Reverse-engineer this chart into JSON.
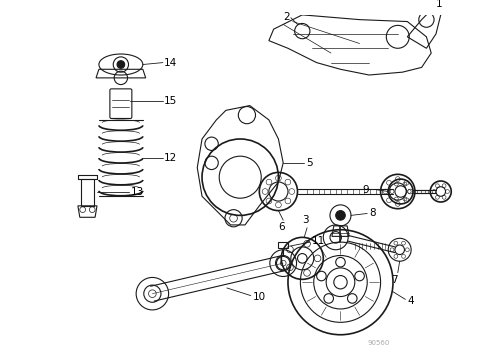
{
  "background_color": "#ffffff",
  "line_color": "#1a1a1a",
  "label_color": "#000000",
  "watermark": "90560",
  "fig_width": 4.9,
  "fig_height": 3.6,
  "dpi": 100
}
